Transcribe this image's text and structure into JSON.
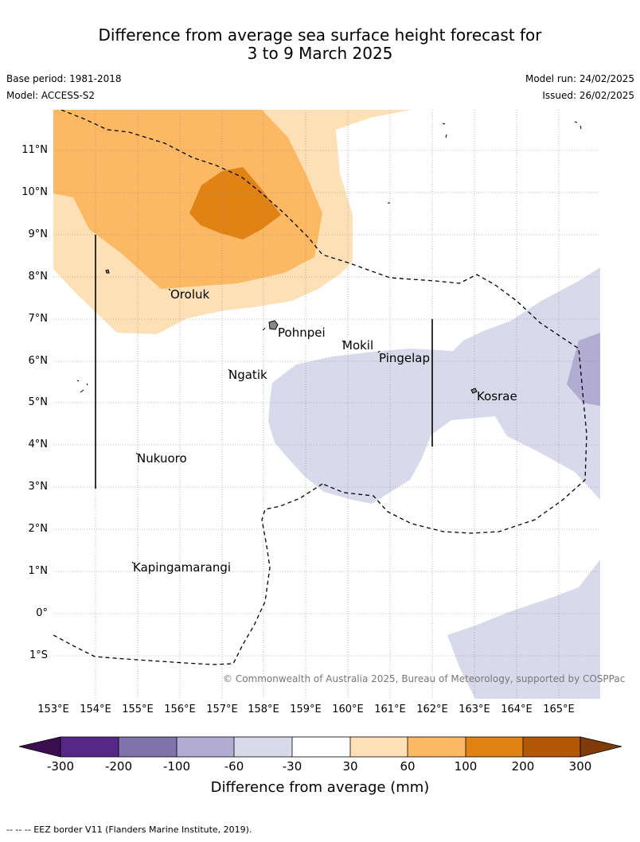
{
  "title": {
    "line1": "Difference from average sea surface height forecast for",
    "line2": "3 to 9 March 2025"
  },
  "meta": {
    "base_period": "Base period: 1981-2018",
    "model": "Model: ACCESS-S2",
    "model_run": "Model run: 24/02/2025",
    "issued": "Issued: 26/02/2025"
  },
  "map": {
    "lat_labels": [
      "11°N",
      "10°N",
      "9°N",
      "8°N",
      "7°N",
      "6°N",
      "5°N",
      "4°N",
      "3°N",
      "2°N",
      "1°N",
      "0°",
      "1°S"
    ],
    "lon_labels": [
      "153°E",
      "154°E",
      "155°E",
      "156°E",
      "157°E",
      "158°E",
      "159°E",
      "160°E",
      "161°E",
      "162°E",
      "163°E",
      "164°E",
      "165°E"
    ],
    "places": [
      "Oroluk",
      "Pohnpei",
      "Mokil",
      "Pingelap",
      "Ngatik",
      "Kosrae",
      "Nukuoro",
      "Kapingamarangi"
    ],
    "copyright": "© Commonwealth of Australia 2025, Bureau of Meteorology, supported by COSPPac"
  },
  "colorbar": {
    "title": "Difference from average (mm)",
    "ticks": [
      "-300",
      "-200",
      "-100",
      "-60",
      "-30",
      "30",
      "60",
      "100",
      "200",
      "300"
    ],
    "colors": {
      "below_min": "#3b0f4f",
      "m300_m200": "#542788",
      "m200_m100": "#8073ac",
      "m100_m60": "#b2abd2",
      "m60_m30": "#d8daeb",
      "m30_30": "#ffffff",
      "p30_60": "#fee0b6",
      "p60_100": "#fdb863",
      "p100_200": "#e08214",
      "p200_300": "#b35806",
      "above_max": "#7f3b08"
    }
  },
  "footer": {
    "legend_line": "--  --  -- EEZ border V11 (Flanders Marine Institute, 2019)."
  }
}
